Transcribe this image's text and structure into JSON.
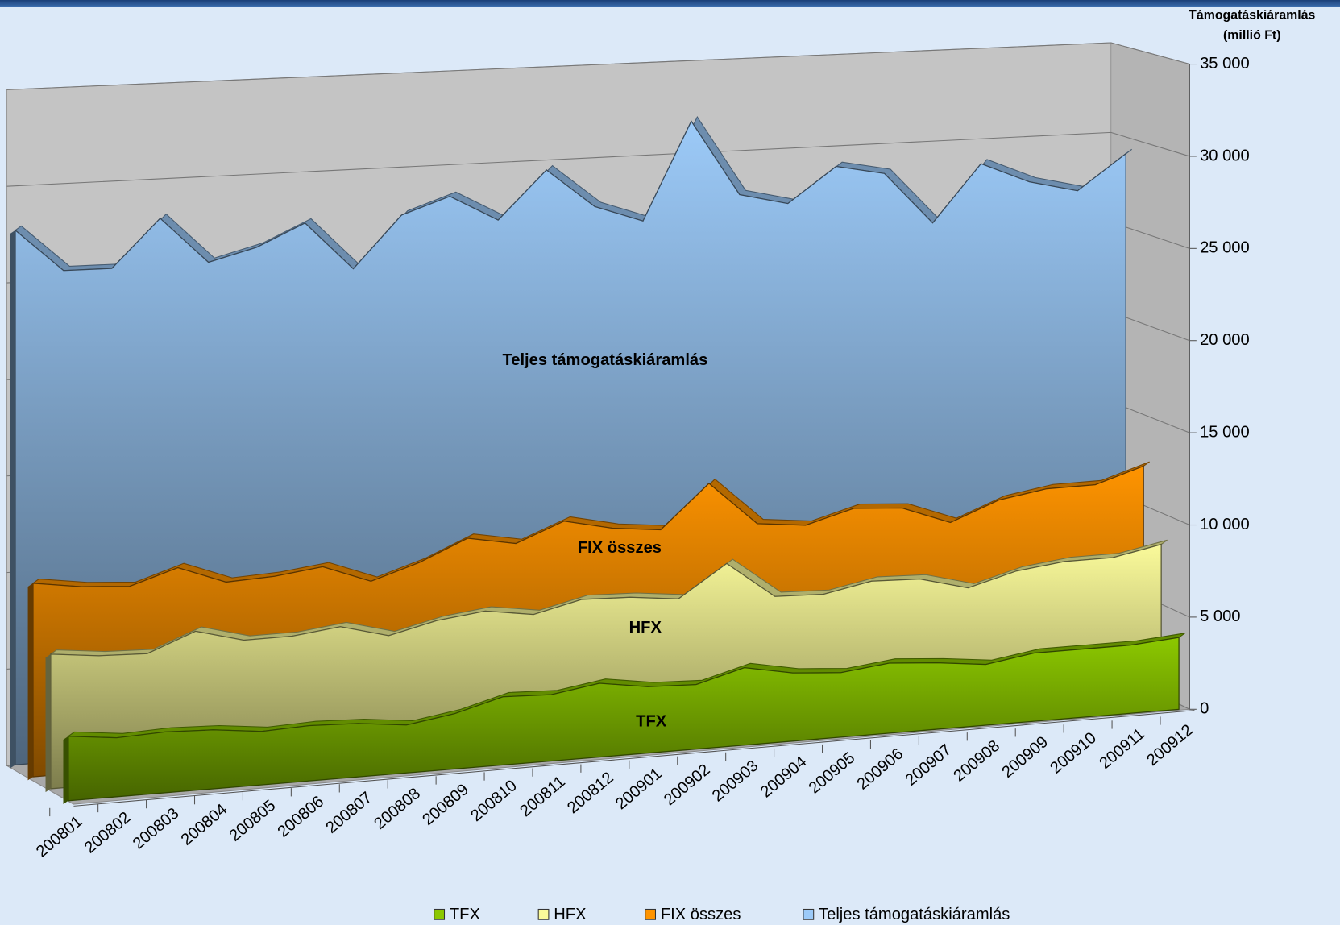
{
  "chart_data": {
    "type": "area3d",
    "y_axis_title": [
      "Támogatáskiáramlás",
      "(millió Ft)"
    ],
    "categories": [
      "200801",
      "200802",
      "200803",
      "200804",
      "200805",
      "200806",
      "200807",
      "200808",
      "200809",
      "200810",
      "200811",
      "200812",
      "200901",
      "200902",
      "200903",
      "200904",
      "200905",
      "200906",
      "200907",
      "200908",
      "200909",
      "200910",
      "200911",
      "200912"
    ],
    "series": [
      {
        "name": "TFX",
        "color": "#8cc800",
        "values": [
          3500,
          3200,
          3300,
          3200,
          2900,
          3000,
          2900,
          2600,
          3000,
          3700,
          3600,
          4000,
          3600,
          3500,
          4200,
          3700,
          3500,
          3800,
          3600,
          3300,
          3700,
          3700,
          3700,
          3900
        ]
      },
      {
        "name": "HFX",
        "color": "#fafa9a",
        "values": [
          7300,
          7000,
          6900,
          7900,
          7200,
          7200,
          7500,
          6800,
          7400,
          7700,
          7300,
          7900,
          7800,
          7500,
          9200,
          7200,
          7100,
          7600,
          7500,
          6800,
          7500,
          7800,
          7800,
          8300
        ]
      },
      {
        "name": "FIX összes",
        "color": "#ff9400",
        "values": [
          10500,
          10100,
          9900,
          10700,
          9700,
          9800,
          10100,
          9100,
          9900,
          11000,
          10500,
          11500,
          10900,
          10600,
          12900,
          10500,
          10200,
          10900,
          10700,
          9700,
          10700,
          11100,
          11100,
          11900
        ]
      },
      {
        "name": "Teljes támogatáskiáramlás",
        "color": "#9ccaf8",
        "values": [
          29000,
          26600,
          26500,
          29000,
          26400,
          27000,
          28100,
          25400,
          28100,
          28900,
          27400,
          29900,
          27700,
          26700,
          31900,
          27700,
          27000,
          28800,
          28200,
          25300,
          28300,
          27100,
          26400,
          28200
        ]
      }
    ],
    "ylim": [
      0,
      35000
    ],
    "yticks": [
      0,
      {
        "value": 5000,
        "label": "5 000"
      },
      {
        "value": 10000,
        "label": "10 000"
      },
      {
        "value": 15000,
        "label": "15 000"
      },
      {
        "value": 20000,
        "label": "20 000"
      },
      {
        "value": 25000,
        "label": "25 000"
      },
      {
        "value": 30000,
        "label": "30 000"
      },
      {
        "value": 35000,
        "label": "35 000"
      }
    ],
    "grid": true,
    "legend": "bottom"
  }
}
